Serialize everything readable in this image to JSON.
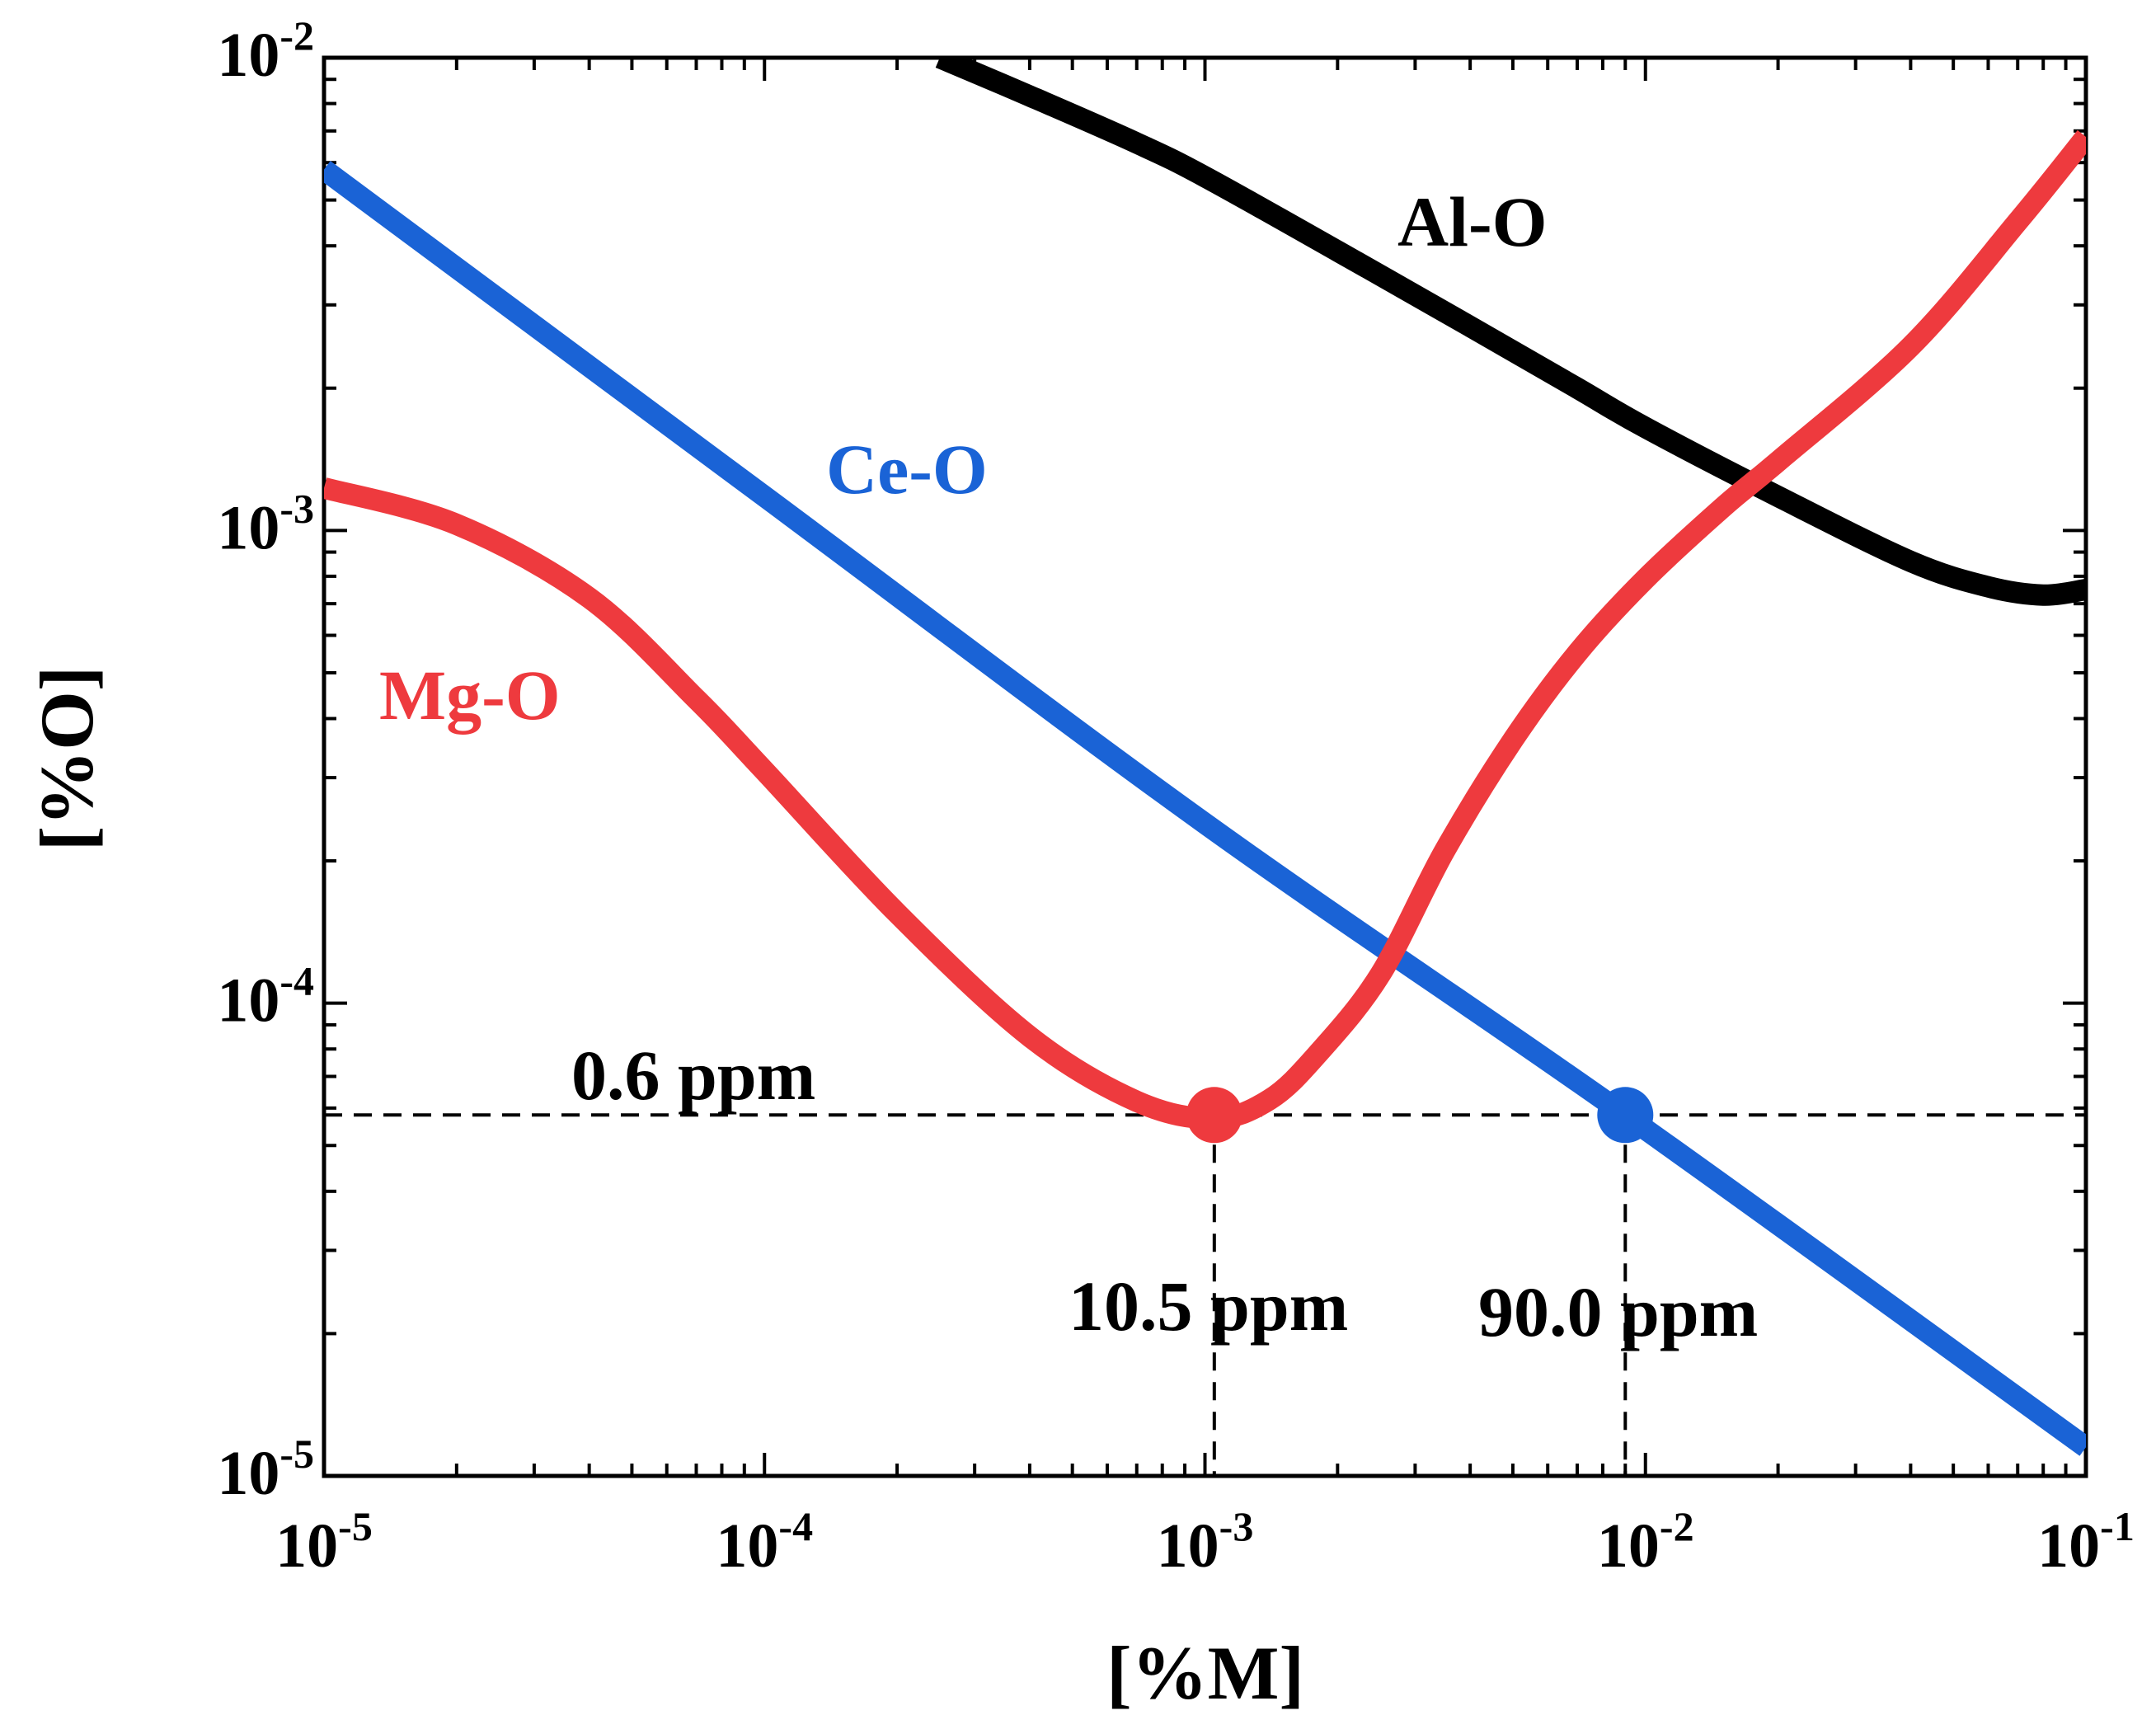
{
  "chart_data": {
    "type": "line",
    "xlabel": "[%M]",
    "ylabel": "[%O]",
    "xscale": "log",
    "yscale": "log",
    "xlim": [
      1e-05,
      0.1
    ],
    "ylim": [
      1e-05,
      0.01
    ],
    "x_ticks": [
      {
        "value": 1e-05,
        "base": "10",
        "exp": "-5"
      },
      {
        "value": 0.0001,
        "base": "10",
        "exp": "-4"
      },
      {
        "value": 0.001,
        "base": "10",
        "exp": "-3"
      },
      {
        "value": 0.01,
        "base": "10",
        "exp": "-2"
      },
      {
        "value": 0.1,
        "base": "10",
        "exp": "-1"
      }
    ],
    "y_ticks": [
      {
        "value": 1e-05,
        "base": "10",
        "exp": "-5"
      },
      {
        "value": 0.0001,
        "base": "10",
        "exp": "-4"
      },
      {
        "value": 0.001,
        "base": "10",
        "exp": "-3"
      },
      {
        "value": 0.01,
        "base": "10",
        "exp": "-2"
      }
    ],
    "grid": false,
    "series": [
      {
        "name": "Al-O",
        "color": "#000000",
        "points": [
          [
            0.00025,
            0.01
          ],
          [
            0.0004,
            0.0083
          ],
          [
            0.0007,
            0.0066
          ],
          [
            0.001,
            0.0056
          ],
          [
            0.002,
            0.0039
          ],
          [
            0.004,
            0.0027
          ],
          [
            0.007,
            0.002
          ],
          [
            0.01,
            0.00165
          ],
          [
            0.02,
            0.00118
          ],
          [
            0.04,
            0.00086
          ],
          [
            0.06,
            0.00076
          ],
          [
            0.08,
            0.00073
          ],
          [
            0.1,
            0.00075
          ]
        ]
      },
      {
        "name": "Ce-O",
        "color": "#1a63d6",
        "points": [
          [
            1e-05,
            0.0058
          ],
          [
            0.0001,
            0.00118
          ],
          [
            0.001,
            0.00024
          ],
          [
            0.009,
            5.8e-05
          ],
          [
            0.1,
            1.15e-05
          ]
        ]
      },
      {
        "name": "Mg-O",
        "color": "#ee3a3e",
        "points": [
          [
            1e-05,
            0.00123
          ],
          [
            2e-05,
            0.00103
          ],
          [
            4e-05,
            0.00072
          ],
          [
            7e-05,
            0.00044
          ],
          [
            0.0001,
            0.00031
          ],
          [
            0.0002,
            0.000155
          ],
          [
            0.0004,
            8.5e-05
          ],
          [
            0.0007,
            6.2e-05
          ],
          [
            0.00105,
            5.7e-05
          ],
          [
            0.0014,
            6.25e-05
          ],
          [
            0.0018,
            7.8e-05
          ],
          [
            0.0025,
            0.000115
          ],
          [
            0.0035,
            0.00021
          ],
          [
            0.005,
            0.00036
          ],
          [
            0.007,
            0.00055
          ],
          [
            0.01,
            0.00079
          ],
          [
            0.015,
            0.00112
          ],
          [
            0.02,
            0.0014
          ],
          [
            0.04,
            0.00245
          ],
          [
            0.07,
            0.0045
          ],
          [
            0.1,
            0.0068
          ]
        ]
      }
    ],
    "series_labels": {
      "Al-O": "Al-O",
      "Ce-O": "Ce-O",
      "Mg-O": "Mg-O"
    },
    "reference_lines": {
      "horizontal_y": 5.8e-05,
      "vertical_x": [
        0.00105,
        0.009
      ]
    },
    "markers": [
      {
        "x": 0.00105,
        "y": 5.8e-05,
        "color": "#ee3a3e"
      },
      {
        "x": 0.009,
        "y": 5.8e-05,
        "color": "#1a63d6"
      }
    ],
    "annotations": {
      "y_value_text": "0.6 ppm",
      "x_mg_text": "10.5 ppm",
      "x_ce_text": "90.0 ppm"
    }
  }
}
